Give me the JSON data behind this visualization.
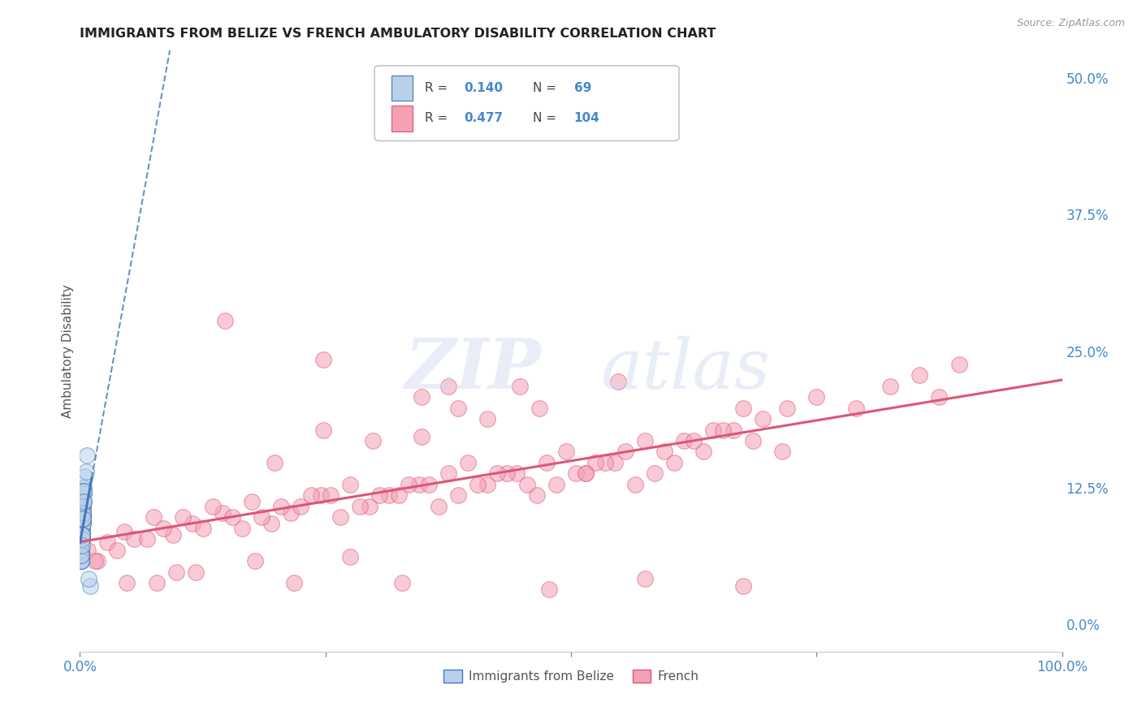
{
  "title": "IMMIGRANTS FROM BELIZE VS FRENCH AMBULATORY DISABILITY CORRELATION CHART",
  "source": "Source: ZipAtlas.com",
  "ylabel": "Ambulatory Disability",
  "legend_label1": "Immigrants from Belize",
  "legend_label2": "French",
  "r1": 0.14,
  "n1": 69,
  "r2": 0.477,
  "n2": 104,
  "color_blue": "#b8d0ea",
  "color_pink": "#f4a0b5",
  "trendline_blue": "#4477bb",
  "trendline_pink": "#dd5577",
  "title_color": "#222222",
  "axis_label_color": "#555555",
  "tick_color": "#4488cc",
  "grid_color": "#cccccc",
  "belize_x": [
    0.002,
    0.003,
    0.004,
    0.002,
    0.001,
    0.003,
    0.005,
    0.002,
    0.001,
    0.002,
    0.003,
    0.001,
    0.002,
    0.004,
    0.003,
    0.001,
    0.002,
    0.001,
    0.003,
    0.002,
    0.001,
    0.002,
    0.003,
    0.004,
    0.001,
    0.002,
    0.003,
    0.001,
    0.002,
    0.003,
    0.006,
    0.002,
    0.001,
    0.003,
    0.002,
    0.001,
    0.004,
    0.003,
    0.002,
    0.001,
    0.002,
    0.003,
    0.001,
    0.002,
    0.003,
    0.002,
    0.001,
    0.004,
    0.003,
    0.002,
    0.007,
    0.003,
    0.002,
    0.001,
    0.004,
    0.002,
    0.003,
    0.001,
    0.002,
    0.003,
    0.001,
    0.002,
    0.003,
    0.002,
    0.001,
    0.004,
    0.01,
    0.009,
    0.002
  ],
  "belize_y": [
    0.09,
    0.105,
    0.125,
    0.095,
    0.075,
    0.11,
    0.135,
    0.085,
    0.065,
    0.095,
    0.1,
    0.072,
    0.082,
    0.12,
    0.108,
    0.068,
    0.092,
    0.062,
    0.098,
    0.082,
    0.058,
    0.078,
    0.093,
    0.112,
    0.063,
    0.088,
    0.102,
    0.068,
    0.082,
    0.097,
    0.14,
    0.092,
    0.058,
    0.102,
    0.087,
    0.063,
    0.122,
    0.097,
    0.082,
    0.058,
    0.078,
    0.092,
    0.063,
    0.082,
    0.097,
    0.078,
    0.058,
    0.112,
    0.092,
    0.078,
    0.155,
    0.1,
    0.082,
    0.063,
    0.122,
    0.082,
    0.097,
    0.068,
    0.082,
    0.102,
    0.058,
    0.078,
    0.097,
    0.082,
    0.063,
    0.112,
    0.035,
    0.042,
    0.072
  ],
  "french_x": [
    0.008,
    0.018,
    0.028,
    0.045,
    0.075,
    0.095,
    0.115,
    0.145,
    0.175,
    0.195,
    0.215,
    0.245,
    0.275,
    0.295,
    0.315,
    0.345,
    0.375,
    0.395,
    0.415,
    0.445,
    0.475,
    0.495,
    0.515,
    0.545,
    0.575,
    0.595,
    0.615,
    0.645,
    0.675,
    0.695,
    0.055,
    0.085,
    0.105,
    0.135,
    0.165,
    0.185,
    0.205,
    0.235,
    0.265,
    0.285,
    0.305,
    0.335,
    0.365,
    0.385,
    0.405,
    0.435,
    0.465,
    0.485,
    0.505,
    0.535,
    0.565,
    0.585,
    0.605,
    0.635,
    0.665,
    0.685,
    0.715,
    0.015,
    0.038,
    0.068,
    0.125,
    0.155,
    0.225,
    0.255,
    0.325,
    0.355,
    0.425,
    0.455,
    0.525,
    0.555,
    0.625,
    0.655,
    0.72,
    0.75,
    0.79,
    0.825,
    0.855,
    0.875,
    0.895,
    0.385,
    0.148,
    0.248,
    0.348,
    0.448,
    0.548,
    0.248,
    0.348,
    0.415,
    0.375,
    0.468,
    0.515,
    0.298,
    0.198,
    0.098,
    0.048,
    0.078,
    0.118,
    0.178,
    0.275,
    0.218,
    0.328,
    0.478,
    0.575,
    0.675
  ],
  "french_y": [
    0.068,
    0.058,
    0.075,
    0.085,
    0.098,
    0.082,
    0.092,
    0.102,
    0.112,
    0.092,
    0.102,
    0.118,
    0.128,
    0.108,
    0.118,
    0.128,
    0.138,
    0.148,
    0.128,
    0.138,
    0.148,
    0.158,
    0.138,
    0.148,
    0.168,
    0.158,
    0.168,
    0.178,
    0.198,
    0.188,
    0.078,
    0.088,
    0.098,
    0.108,
    0.088,
    0.098,
    0.108,
    0.118,
    0.098,
    0.108,
    0.118,
    0.128,
    0.108,
    0.118,
    0.128,
    0.138,
    0.118,
    0.128,
    0.138,
    0.148,
    0.128,
    0.138,
    0.148,
    0.158,
    0.178,
    0.168,
    0.158,
    0.058,
    0.068,
    0.078,
    0.088,
    0.098,
    0.108,
    0.118,
    0.118,
    0.128,
    0.138,
    0.128,
    0.148,
    0.158,
    0.168,
    0.178,
    0.198,
    0.208,
    0.198,
    0.218,
    0.228,
    0.208,
    0.238,
    0.198,
    0.278,
    0.242,
    0.208,
    0.218,
    0.222,
    0.178,
    0.172,
    0.188,
    0.218,
    0.198,
    0.138,
    0.168,
    0.148,
    0.048,
    0.038,
    0.038,
    0.048,
    0.058,
    0.062,
    0.038,
    0.038,
    0.032,
    0.042,
    0.035
  ],
  "xlim": [
    0.0,
    1.0
  ],
  "ylim": [
    -0.025,
    0.525
  ],
  "yticks": [
    0.0,
    0.125,
    0.25,
    0.375,
    0.5
  ],
  "ytick_labels": [
    "0.0%",
    "12.5%",
    "25.0%",
    "37.5%",
    "50.0%"
  ],
  "xtick_positions": [
    0.0,
    0.25,
    0.5,
    0.75,
    1.0
  ],
  "xtick_labels": [
    "0.0%",
    "",
    "",
    "",
    "100.0%"
  ]
}
